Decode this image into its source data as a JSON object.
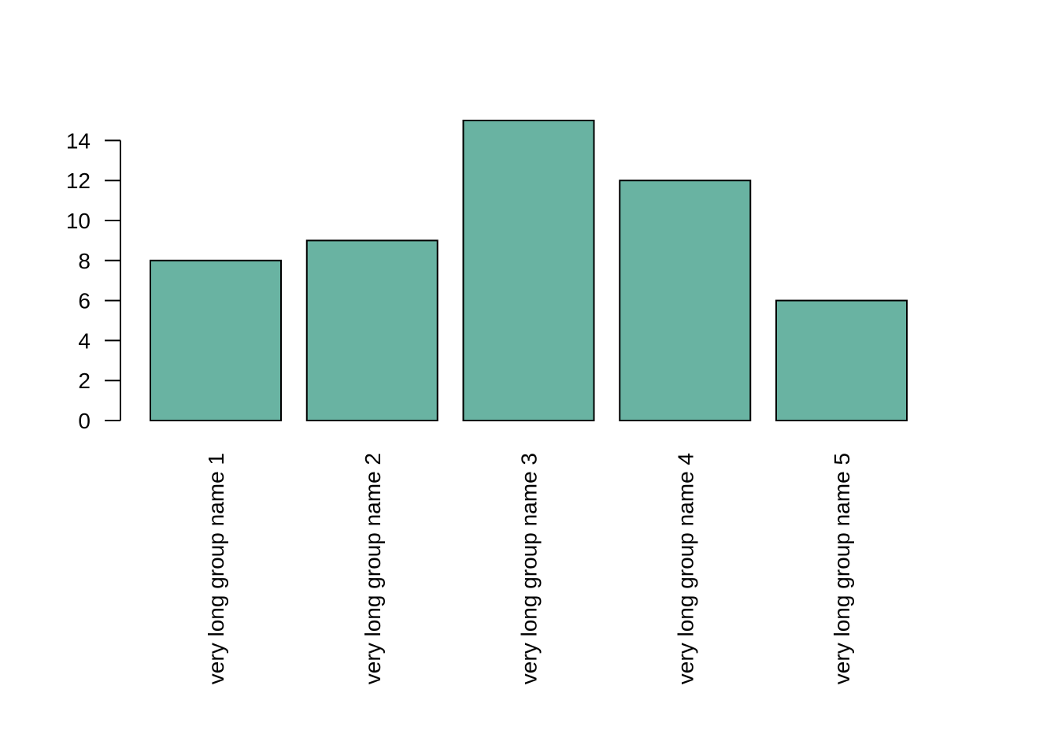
{
  "chart_data": {
    "type": "bar",
    "title": "",
    "xlabel": "",
    "ylabel": "",
    "categories": [
      "very long group name 1",
      "very long group name 2",
      "very long group name 3",
      "very long group name 4",
      "very long group name 5"
    ],
    "values": [
      8,
      9,
      15,
      12,
      6
    ],
    "ylim": [
      0,
      14
    ],
    "yticks": [
      0,
      2,
      4,
      6,
      8,
      10,
      12,
      14
    ],
    "grid": false,
    "legend": "none",
    "bar_color": "#69b3a2",
    "bar_border_color": "#000000",
    "category_label_rotation": "vertical"
  }
}
